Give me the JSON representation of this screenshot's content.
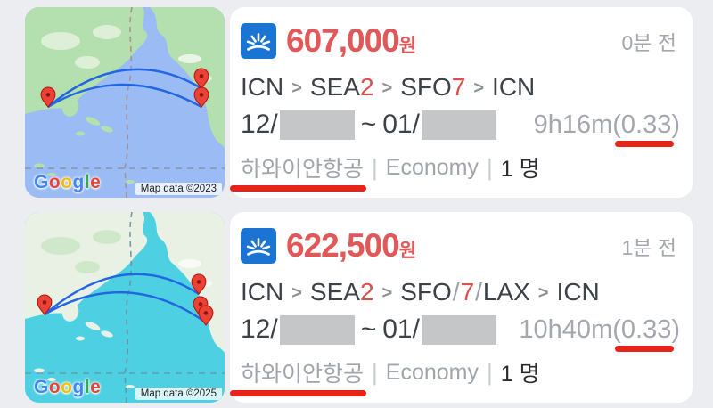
{
  "page": {
    "background": "#ebedf1",
    "annotation_color": "#e8231a"
  },
  "cards": [
    {
      "map": {
        "google_logo_letters": [
          {
            "ch": "G",
            "color": "#4285F4"
          },
          {
            "ch": "o",
            "color": "#EA4335"
          },
          {
            "ch": "o",
            "color": "#FBBC05"
          },
          {
            "ch": "g",
            "color": "#4285F4"
          },
          {
            "ch": "l",
            "color": "#34A853"
          },
          {
            "ch": "e",
            "color": "#EA4335"
          }
        ],
        "attribution": "Map data ©2023",
        "colors": {
          "ocean": "#9abbf4",
          "land": "#b4dfae",
          "land2": "#ddefd7",
          "dateline": "#a98c8c",
          "grid": "#7e8b99",
          "arc": "#2266e3",
          "pin": "#ea4335",
          "pin_stroke": "#b3140b"
        }
      },
      "logo_icon": "sunrise-airline-logo",
      "logo_color": "#1c74d2",
      "price": "607,000",
      "currency": "원",
      "posted": "0분 전",
      "route": [
        {
          "t": "ICN",
          "c": "apt"
        },
        {
          "t": ">",
          "c": "arr"
        },
        {
          "t": "SEA",
          "c": "apt"
        },
        {
          "t": "2",
          "c": "num"
        },
        {
          "t": ">",
          "c": "arr"
        },
        {
          "t": "SFO",
          "c": "apt"
        },
        {
          "t": "7",
          "c": "num"
        },
        {
          "t": ">",
          "c": "arr"
        },
        {
          "t": "ICN",
          "c": "apt"
        }
      ],
      "date_out_prefix": "12/",
      "date_separator": "~",
      "date_in_prefix": "01/",
      "duration": "9h16m",
      "ratio": "(0.33)",
      "airline": "하와이안항공",
      "cabin": "Economy",
      "pipe": "|",
      "pax": "1 명"
    },
    {
      "map": {
        "google_logo_letters": [
          {
            "ch": "G",
            "color": "#4285F4"
          },
          {
            "ch": "o",
            "color": "#EA4335"
          },
          {
            "ch": "o",
            "color": "#FBBC05"
          },
          {
            "ch": "g",
            "color": "#4285F4"
          },
          {
            "ch": "l",
            "color": "#34A853"
          },
          {
            "ch": "e",
            "color": "#EA4335"
          }
        ],
        "attribution": "Map data ©2025",
        "colors": {
          "ocean": "#4dd0e1",
          "land": "#e9f1e4",
          "land2": "#cfe8ca",
          "dateline": "#6f8d9e",
          "grid": "#6f8d9e",
          "arc": "#2266e3",
          "pin": "#ea4335",
          "pin_stroke": "#b3140b"
        }
      },
      "logo_icon": "sunrise-airline-logo",
      "logo_color": "#1c74d2",
      "price": "622,500",
      "currency": "원",
      "posted": "1분 전",
      "route": [
        {
          "t": "ICN",
          "c": "apt"
        },
        {
          "t": ">",
          "c": "arr"
        },
        {
          "t": "SEA",
          "c": "apt"
        },
        {
          "t": "2",
          "c": "num"
        },
        {
          "t": ">",
          "c": "arr"
        },
        {
          "t": "SFO",
          "c": "apt"
        },
        {
          "t": "/",
          "c": "sep"
        },
        {
          "t": "7",
          "c": "num"
        },
        {
          "t": "/",
          "c": "sep"
        },
        {
          "t": "LAX",
          "c": "apt"
        },
        {
          "t": ">",
          "c": "arr"
        },
        {
          "t": "ICN",
          "c": "apt"
        }
      ],
      "date_out_prefix": "12/",
      "date_separator": "~",
      "date_in_prefix": "01/",
      "duration": "10h40m",
      "ratio": "(0.33)",
      "airline": "하와이안항공",
      "cabin": "Economy",
      "pipe": "|",
      "pax": "1 명"
    }
  ]
}
